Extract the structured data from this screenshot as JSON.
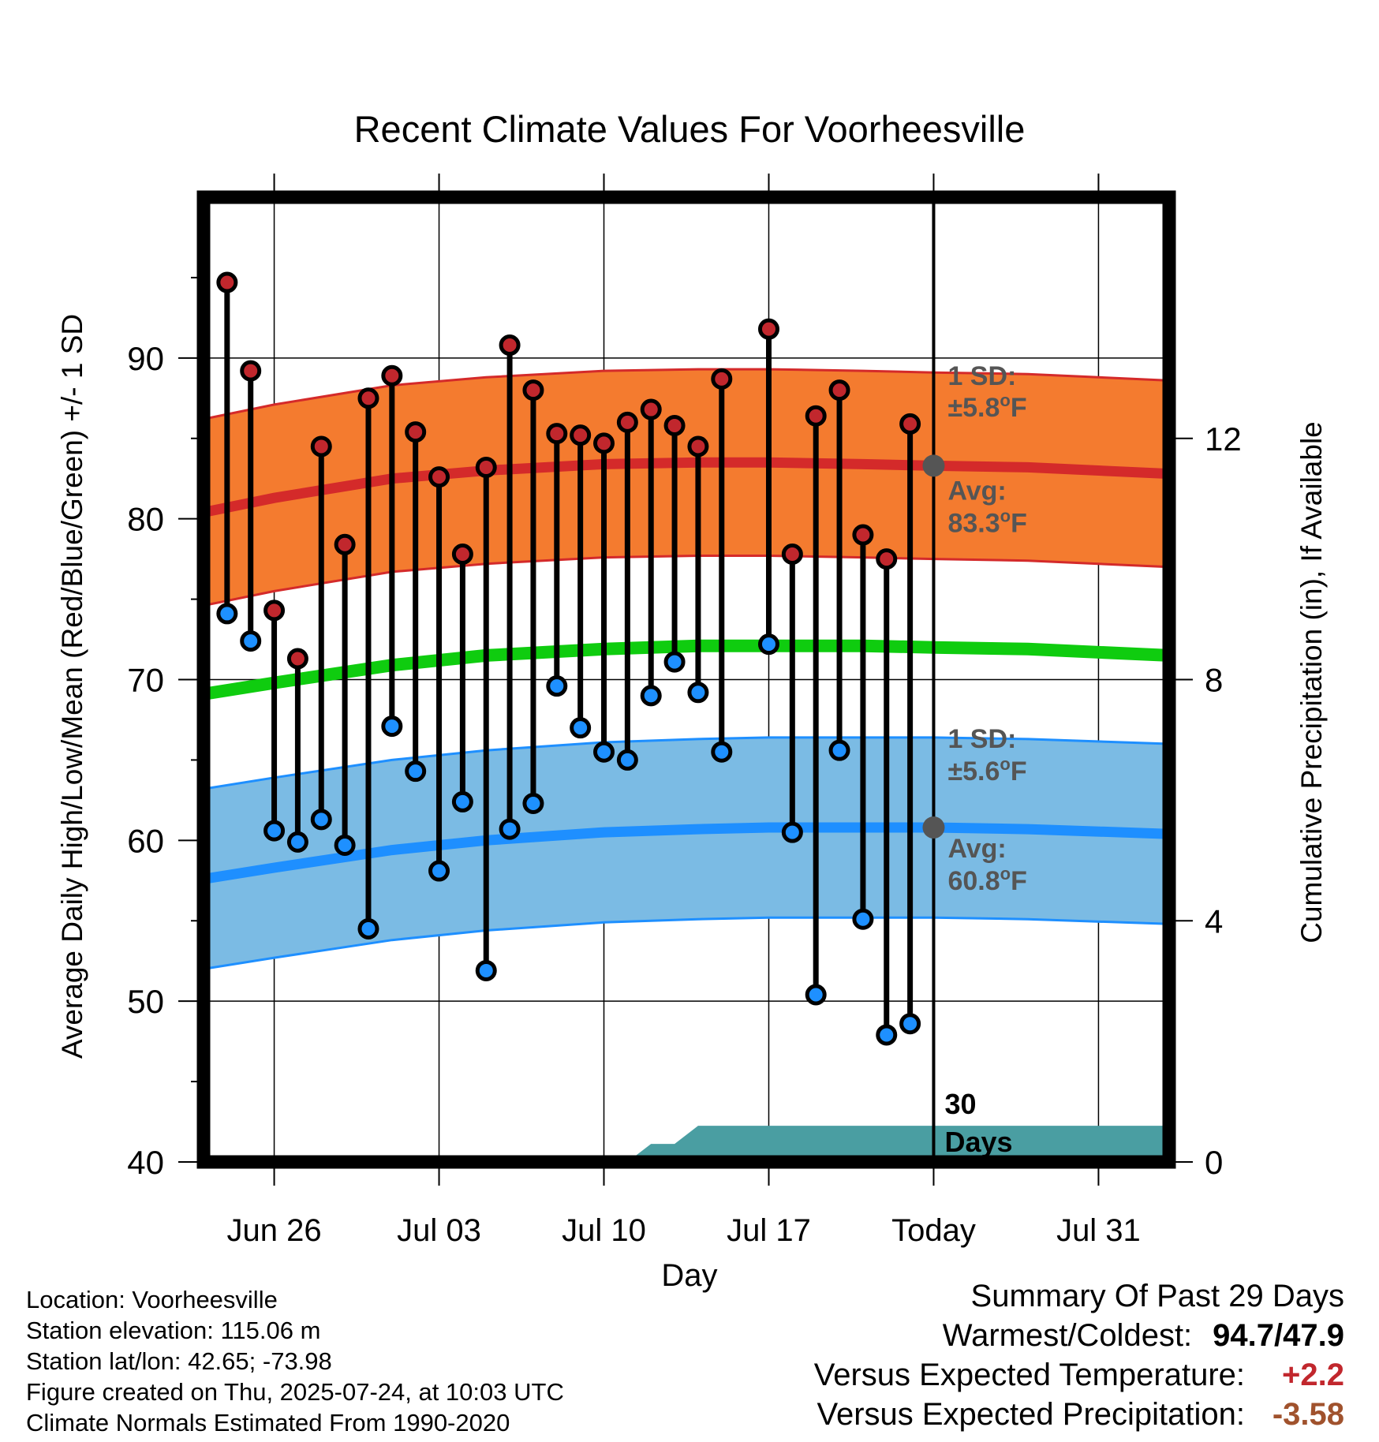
{
  "chart_data": {
    "type": "line",
    "title": "Recent Climate Values For Voorheesville",
    "xlabel": "Day",
    "ylabel": "Average Daily High/Low/Mean (Red/Blue/Green) +/- 1 SD",
    "y2label": "Cumulative Precipitation (in), If Available",
    "ylim": [
      40,
      100
    ],
    "y_ticks": [
      40,
      50,
      60,
      70,
      80,
      90
    ],
    "y2lim": [
      0,
      16
    ],
    "y2_ticks": [
      0,
      4,
      8,
      12
    ],
    "x_tick_labels": [
      "Jun 26",
      "Jul 03",
      "Jul 10",
      "Jul 17",
      "Today",
      "Jul 31"
    ],
    "x_tick_dates": [
      "2025-06-26",
      "2025-07-03",
      "2025-07-10",
      "2025-07-17",
      "2025-07-24",
      "2025-07-31"
    ],
    "x_range": [
      "2025-06-23",
      "2025-08-03"
    ],
    "grid": true,
    "today_label": "30 Days",
    "daily": [
      {
        "date": "2025-06-24",
        "high": 94.7,
        "low": 74.1
      },
      {
        "date": "2025-06-25",
        "high": 89.2,
        "low": 72.4
      },
      {
        "date": "2025-06-26",
        "high": 74.3,
        "low": 60.6
      },
      {
        "date": "2025-06-27",
        "high": 71.3,
        "low": 59.9
      },
      {
        "date": "2025-06-28",
        "high": 84.5,
        "low": 61.3
      },
      {
        "date": "2025-06-29",
        "high": 78.4,
        "low": 59.7
      },
      {
        "date": "2025-06-30",
        "high": 87.5,
        "low": 54.5
      },
      {
        "date": "2025-07-01",
        "high": 88.9,
        "low": 67.1
      },
      {
        "date": "2025-07-02",
        "high": 85.4,
        "low": 64.3
      },
      {
        "date": "2025-07-03",
        "high": 82.6,
        "low": 58.1
      },
      {
        "date": "2025-07-04",
        "high": 77.8,
        "low": 62.4
      },
      {
        "date": "2025-07-05",
        "high": 83.2,
        "low": 51.9
      },
      {
        "date": "2025-07-06",
        "high": 90.8,
        "low": 60.7
      },
      {
        "date": "2025-07-07",
        "high": 88.0,
        "low": 62.3
      },
      {
        "date": "2025-07-08",
        "high": 85.3,
        "low": 69.6
      },
      {
        "date": "2025-07-09",
        "high": 85.2,
        "low": 67.0
      },
      {
        "date": "2025-07-10",
        "high": 84.7,
        "low": 65.5
      },
      {
        "date": "2025-07-11",
        "high": 86.0,
        "low": 65.0
      },
      {
        "date": "2025-07-12",
        "high": 86.8,
        "low": 69.0
      },
      {
        "date": "2025-07-13",
        "high": 85.8,
        "low": 71.1
      },
      {
        "date": "2025-07-14",
        "high": 84.5,
        "low": 69.2
      },
      {
        "date": "2025-07-15",
        "high": 88.7,
        "low": 65.5
      },
      {
        "date": "2025-07-17",
        "high": 91.8,
        "low": 72.2
      },
      {
        "date": "2025-07-18",
        "high": 77.8,
        "low": 60.5
      },
      {
        "date": "2025-07-19",
        "high": 86.4,
        "low": 50.4
      },
      {
        "date": "2025-07-20",
        "high": 88.0,
        "low": 65.6
      },
      {
        "date": "2025-07-21",
        "high": 79.0,
        "low": 55.1
      },
      {
        "date": "2025-07-22",
        "high": 77.5,
        "low": 47.9
      },
      {
        "date": "2025-07-23",
        "high": 85.9,
        "low": 48.6
      }
    ],
    "normals": {
      "dates": [
        "2025-06-23",
        "2025-06-26",
        "2025-07-01",
        "2025-07-05",
        "2025-07-10",
        "2025-07-14",
        "2025-07-17",
        "2025-07-21",
        "2025-07-24",
        "2025-07-28",
        "2025-08-03"
      ],
      "high": [
        80.4,
        81.3,
        82.5,
        83.0,
        83.4,
        83.5,
        83.5,
        83.4,
        83.3,
        83.2,
        82.8
      ],
      "low": [
        57.6,
        58.3,
        59.4,
        60.0,
        60.5,
        60.7,
        60.8,
        60.8,
        60.8,
        60.7,
        60.4
      ],
      "mean": [
        69.1,
        69.8,
        70.9,
        71.5,
        71.9,
        72.1,
        72.1,
        72.1,
        72.0,
        71.9,
        71.5
      ],
      "high_sd": 5.8,
      "low_sd": 5.6
    },
    "precip": {
      "dates": [
        "2025-07-11",
        "2025-07-12",
        "2025-07-13",
        "2025-07-14",
        "2025-07-17",
        "2025-07-24",
        "2025-08-03"
      ],
      "values": [
        0.0,
        0.3,
        0.3,
        0.6,
        0.6,
        0.6,
        0.6
      ]
    },
    "annotations": {
      "high_sd_label": "1 SD:",
      "high_sd_value": "±5.8",
      "high_avg_label": "Avg:",
      "high_avg_value": "83.3",
      "low_sd_label": "1 SD:",
      "low_sd_value": "±5.6",
      "low_avg_label": "Avg:",
      "low_avg_value": "60.8",
      "degree_symbol": "o",
      "unit": "F"
    },
    "colors": {
      "high_band": "#f47b2f",
      "high_line": "#d42a2a",
      "high_dot": "#c1272d",
      "low_band": "#7bbbe4",
      "low_line": "#1e8fff",
      "low_dot": "#1e90ff",
      "mean_line": "#0fcc0f",
      "precip": "#4a9ea2",
      "annotation_text": "#555555",
      "avg_marker": "#555555"
    }
  },
  "station_info": {
    "location": "Location: Voorheesville",
    "elevation": "Station elevation: 115.06 m",
    "latlon": "Station lat/lon: 42.65; -73.98",
    "created": "Figure created on Thu, 2025-07-24, at 10:03 UTC",
    "normals": "Climate Normals Estimated From 1990-2020"
  },
  "summary": {
    "title": "Summary Of Past 29 Days",
    "warmest_coldest_label": "Warmest/Coldest:",
    "warmest_coldest_value": "94.7/47.9",
    "temp_label": "Versus Expected Temperature:",
    "temp_value": "+2.2",
    "temp_color": "#c1272d",
    "precip_label": "Versus Expected Precipitation:",
    "precip_value": "-3.58",
    "precip_color": "#a0522d"
  }
}
